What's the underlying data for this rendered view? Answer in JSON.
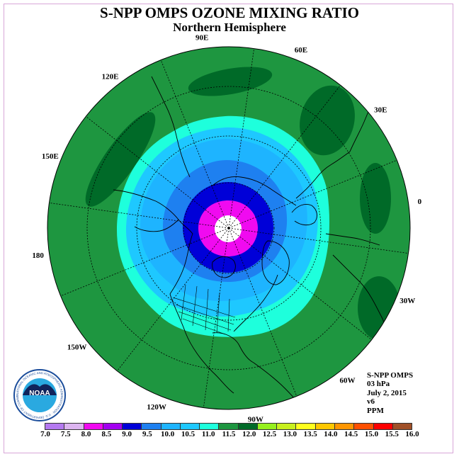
{
  "title": "S-NPP OMPS OZONE MIXING RATIO",
  "subtitle": "Northern Hemisphere",
  "info": [
    "S-NPP OMPS",
    "03 hPa",
    "July 2, 2015",
    "v6",
    "PPM"
  ],
  "logo_text": "NOAA",
  "logo_ring_text": "NATIONAL OCEANIC AND ATMOSPHERIC ADMINISTRATION · U.S. DEPARTMENT OF COMMERCE",
  "longitude_labels": [
    "0",
    "30E",
    "60E",
    "90E",
    "120E",
    "150E",
    "180",
    "150W",
    "120W",
    "90W",
    "60W",
    "30W"
  ],
  "colorbar": {
    "ticks": [
      "7.0",
      "7.5",
      "8.0",
      "8.5",
      "9.0",
      "9.5",
      "10.0",
      "10.5",
      "11.0",
      "11.5",
      "12.0",
      "12.5",
      "13.0",
      "13.5",
      "14.0",
      "14.5",
      "15.0",
      "15.5",
      "16.0"
    ],
    "colors": [
      "#b479f0",
      "#dcb4f0",
      "#f00af0",
      "#a300f0",
      "#0000d8",
      "#1e80f0",
      "#1eb4ff",
      "#1ec8ff",
      "#1effdc",
      "#1e9640",
      "#006a28",
      "#96f01e",
      "#c8f01e",
      "#ffff1e",
      "#ffc800",
      "#ff9600",
      "#ff5000",
      "#ff0000",
      "#a05028"
    ]
  },
  "map": {
    "projection": "north polar stereographic",
    "field_colors": {
      "missing": "#ffffff",
      "band_8_0": "#f00af0",
      "band_8_5": "#0000d8",
      "band_9_0": "#1e80f0",
      "band_9_5": "#1eb4ff",
      "band_10_0": "#1ec8ff",
      "band_10_5": "#1effdc",
      "band_11_0": "#1e9640",
      "band_11_5": "#006a28"
    }
  }
}
